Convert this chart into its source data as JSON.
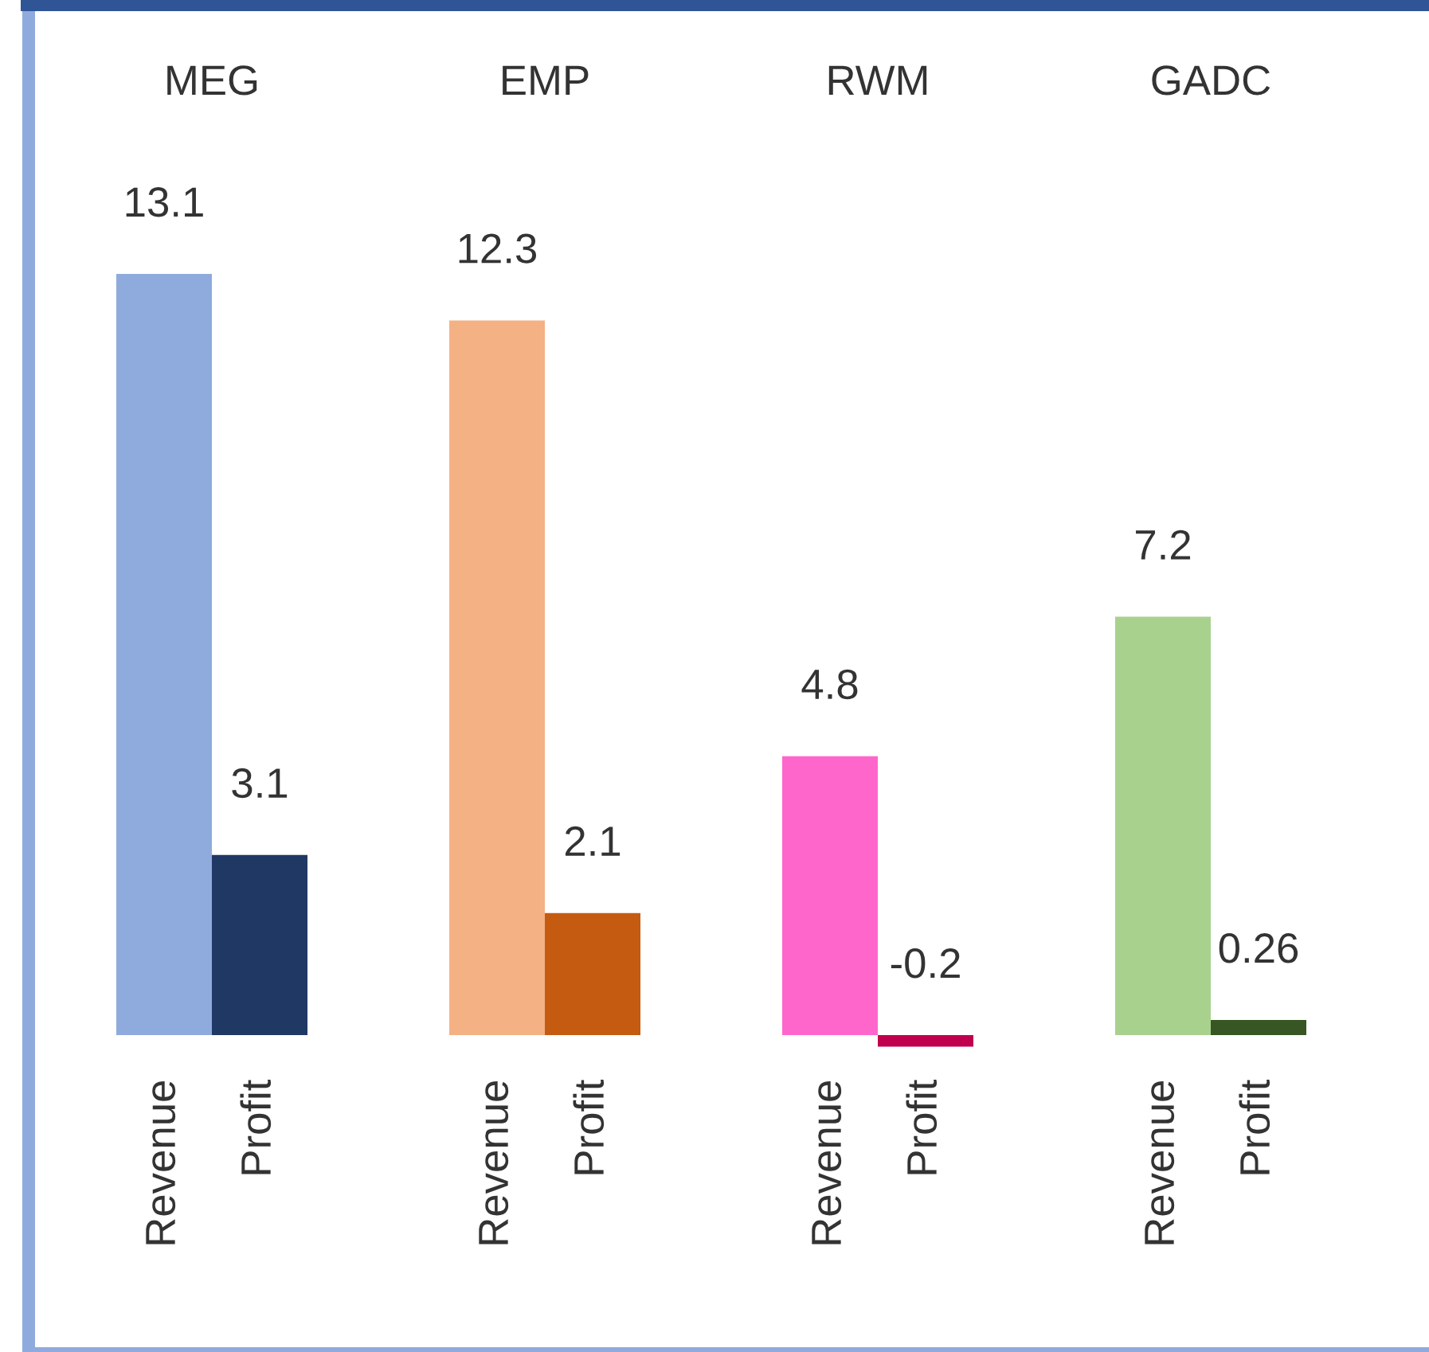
{
  "chart_data": {
    "type": "bar",
    "categories": [
      "MEG",
      "EMP",
      "RWM",
      "GADC"
    ],
    "series": [
      {
        "name": "Revenue",
        "colors": [
          "#8faadc",
          "#f4b183",
          "#ff66cc",
          "#a9d18e"
        ],
        "values": [
          13.1,
          12.3,
          4.8,
          7.2
        ]
      },
      {
        "name": "Profit",
        "colors": [
          "#203864",
          "#c55a11",
          "#c0004f",
          "#375623"
        ],
        "values": [
          3.1,
          2.1,
          -0.2,
          0.26
        ]
      }
    ],
    "data_labels": true
  }
}
